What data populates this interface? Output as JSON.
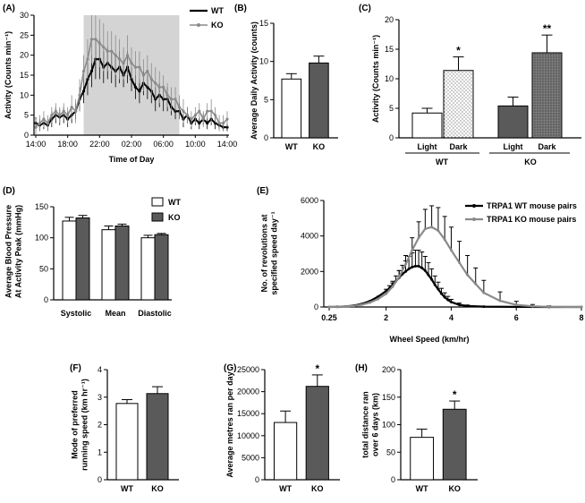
{
  "colors": {
    "wt": "#ffffff",
    "ko": "#5a5a5a",
    "wt_line": "#000000",
    "ko_line": "#8a8a8a",
    "shade": "#d4d4d4",
    "stroke": "#000000"
  },
  "chart_data": [
    {
      "id": "A",
      "panel_label": "(A)",
      "type": "line",
      "xlabel": "Time of Day",
      "ylabel": "Activity (Counts min⁻¹)",
      "ylim": [
        0,
        30
      ],
      "yticks": [
        "0",
        "5",
        "10",
        "15",
        "20",
        "25",
        "30"
      ],
      "xticks": [
        "14:00",
        "18:00",
        "22:00",
        "02:00",
        "06:00",
        "10:00",
        "14:00"
      ],
      "x_range_hours": [
        14,
        38
      ],
      "dark_period_hours": [
        20,
        32
      ],
      "legend": [
        "WT",
        "KO"
      ],
      "series": [
        {
          "name": "WT",
          "x": [
            14,
            14.5,
            15,
            15.5,
            16,
            16.5,
            17,
            17.5,
            18,
            18.5,
            19,
            19.5,
            20,
            20.5,
            21,
            21.5,
            22,
            22.5,
            23,
            23.5,
            24,
            24.5,
            25,
            25.5,
            26,
            26.5,
            27,
            27.5,
            28,
            28.5,
            29,
            29.5,
            30,
            30.5,
            31,
            31.5,
            32,
            32.5,
            33,
            33.5,
            34,
            34.5,
            35,
            35.5,
            36,
            36.5,
            37,
            37.5,
            38
          ],
          "y": [
            3,
            2.5,
            3,
            2.5,
            4,
            5,
            4.5,
            5,
            4,
            5,
            6,
            9,
            11,
            14,
            16,
            19,
            19,
            17,
            18,
            17,
            16,
            17,
            15,
            17,
            14,
            12,
            11,
            13,
            12,
            11,
            9,
            10,
            9,
            9,
            7,
            6,
            6,
            4,
            5,
            3,
            4,
            3,
            4,
            3,
            4,
            3,
            2.5,
            2,
            2
          ],
          "err": [
            1.5,
            1.5,
            1.5,
            1.5,
            2,
            2,
            2,
            2,
            2,
            2,
            2,
            3,
            3,
            4,
            4,
            5,
            5,
            4,
            4,
            4,
            4,
            4,
            3,
            4,
            3,
            3,
            3,
            3,
            3,
            3,
            3,
            3,
            3,
            3,
            2,
            2,
            2,
            2,
            2,
            1.5,
            1.5,
            1.5,
            1.5,
            1.5,
            1.5,
            1.5,
            1,
            1,
            1
          ]
        },
        {
          "name": "KO",
          "x": [
            14,
            14.5,
            15,
            15.5,
            16,
            16.5,
            17,
            17.5,
            18,
            18.5,
            19,
            19.5,
            20,
            20.5,
            21,
            21.5,
            22,
            22.5,
            23,
            23.5,
            24,
            24.5,
            25,
            25.5,
            26,
            26.5,
            27,
            27.5,
            28,
            28.5,
            29,
            29.5,
            30,
            30.5,
            31,
            31.5,
            32,
            32.5,
            33,
            33.5,
            34,
            34.5,
            35,
            35.5,
            36,
            36.5,
            37,
            37.5,
            38
          ],
          "y": [
            2,
            3,
            4,
            3,
            5,
            6,
            5,
            6,
            5,
            7,
            6,
            10,
            16,
            19,
            24,
            24,
            23,
            22,
            21,
            21,
            20,
            19,
            18,
            20,
            18,
            17,
            17,
            15,
            16,
            14,
            13,
            12,
            12,
            10,
            9,
            9,
            7,
            6,
            5,
            4,
            5,
            6,
            4,
            6,
            6,
            5,
            3,
            3,
            4
          ],
          "err": [
            2,
            2,
            2,
            2,
            2,
            2,
            2,
            2,
            2,
            3,
            3,
            4,
            4,
            5,
            6,
            6,
            6,
            6,
            5,
            5,
            5,
            5,
            4,
            5,
            4,
            4,
            4,
            4,
            4,
            4,
            4,
            4,
            3,
            3,
            3,
            3,
            3,
            3,
            2,
            2,
            2,
            2,
            2,
            2,
            3,
            2,
            2,
            2,
            2
          ]
        }
      ]
    },
    {
      "id": "B",
      "panel_label": "(B)",
      "type": "bar",
      "ylabel": "Average Daily Activity (counts)",
      "ylim": [
        0,
        15
      ],
      "yticks": [
        "0",
        "5",
        "10",
        "15"
      ],
      "categories": [
        "WT",
        "KO"
      ],
      "values": [
        7.7,
        9.8
      ],
      "errors": [
        0.7,
        0.9
      ]
    },
    {
      "id": "C",
      "panel_label": "(C)",
      "type": "bar",
      "ylabel": "Activity (Counts min⁻¹)",
      "ylim": [
        0,
        20
      ],
      "yticks": [
        "0",
        "5",
        "10",
        "15",
        "20"
      ],
      "categories": [
        "Light",
        "Dark",
        "Light",
        "Dark"
      ],
      "groups": [
        "WT",
        "KO"
      ],
      "values": [
        4.2,
        11.4,
        5.4,
        14.4
      ],
      "errors": [
        0.8,
        2.3,
        1.5,
        3.0
      ],
      "annotations": [
        "",
        "*",
        "",
        "**"
      ]
    },
    {
      "id": "D",
      "panel_label": "(D)",
      "type": "bar",
      "ylabel_lines": [
        "Average Blood Pressure",
        "At Activity Peak (mmHg)"
      ],
      "ylim": [
        0,
        150
      ],
      "yticks": [
        "0",
        "50",
        "100",
        "150"
      ],
      "categories": [
        "Systolic",
        "Mean",
        "Diastolic"
      ],
      "legend": [
        "WT",
        "KO"
      ],
      "series": [
        {
          "name": "WT",
          "values": [
            127,
            113,
            100
          ],
          "errors": [
            6,
            6,
            4
          ]
        },
        {
          "name": "KO",
          "values": [
            132,
            119,
            105
          ],
          "errors": [
            4,
            3,
            2
          ]
        }
      ]
    },
    {
      "id": "E",
      "panel_label": "(E)",
      "type": "line",
      "xlabel": "Wheel Speed (km/hr)",
      "ylabel_lines": [
        "No. of revolutions at",
        "specified speed day⁻¹"
      ],
      "ylim": [
        0,
        6000
      ],
      "yticks": [
        "0",
        "2000",
        "4000",
        "6000"
      ],
      "xlim": [
        0.25,
        8
      ],
      "xticks": [
        "0.25",
        "2",
        "4",
        "6",
        "8"
      ],
      "legend": [
        "TRPA1 WT mouse pairs",
        "TRPA1 KO mouse pairs"
      ],
      "series": [
        {
          "name": "TRPA1 WT mouse pairs",
          "x": [
            0.25,
            0.5,
            0.75,
            1,
            1.25,
            1.5,
            1.75,
            2,
            2.1,
            2.2,
            2.3,
            2.4,
            2.5,
            2.6,
            2.7,
            2.8,
            2.9,
            3,
            3.1,
            3.2,
            3.3,
            3.4,
            3.5,
            3.6,
            3.7,
            3.8,
            3.9,
            4,
            4.25,
            4.5,
            5,
            6,
            7,
            8
          ],
          "y": [
            0,
            10,
            30,
            80,
            170,
            330,
            580,
            900,
            1050,
            1250,
            1450,
            1650,
            1850,
            2000,
            2150,
            2250,
            2300,
            2300,
            2200,
            2050,
            1800,
            1550,
            1250,
            1000,
            750,
            550,
            400,
            280,
            120,
            60,
            20,
            5,
            0,
            0
          ],
          "err": [
            0,
            0,
            0,
            0,
            0,
            0,
            0,
            100,
            150,
            200,
            300,
            400,
            500,
            600,
            700,
            800,
            900,
            900,
            900,
            800,
            700,
            600,
            500,
            400,
            300,
            250,
            200,
            150,
            100,
            50,
            20,
            0,
            0,
            0
          ]
        },
        {
          "name": "TRPA1 KO mouse pairs",
          "x": [
            0.25,
            0.5,
            0.75,
            1,
            1.25,
            1.5,
            1.75,
            2,
            2.2,
            2.4,
            2.6,
            2.8,
            3,
            3.2,
            3.4,
            3.6,
            3.8,
            4,
            4.25,
            4.5,
            4.75,
            5,
            5.5,
            6,
            6.5,
            7,
            8
          ],
          "y": [
            0,
            10,
            30,
            60,
            130,
            250,
            450,
            750,
            1150,
            1700,
            2400,
            3200,
            3900,
            4400,
            4500,
            4300,
            3800,
            3200,
            2500,
            1800,
            1300,
            800,
            350,
            120,
            40,
            10,
            0
          ],
          "err": [
            0,
            0,
            0,
            0,
            0,
            0,
            0,
            100,
            200,
            350,
            500,
            700,
            900,
            1100,
            1200,
            1300,
            1300,
            1300,
            1200,
            1100,
            900,
            700,
            500,
            200,
            100,
            50,
            0
          ]
        }
      ]
    },
    {
      "id": "F",
      "panel_label": "(F)",
      "type": "bar",
      "ylabel_lines": [
        "Mode of preferred",
        "running speed (km hr⁻¹)"
      ],
      "ylim": [
        0,
        4
      ],
      "yticks": [
        "0",
        "1",
        "2",
        "3",
        "4"
      ],
      "categories": [
        "WT",
        "KO"
      ],
      "values": [
        2.77,
        3.13
      ],
      "errors": [
        0.14,
        0.25
      ]
    },
    {
      "id": "G",
      "panel_label": "(G)",
      "type": "bar",
      "ylabel": "Average metres ran per day",
      "ylim": [
        0,
        25000
      ],
      "yticks": [
        "0",
        "5000",
        "10000",
        "15000",
        "20000",
        "25000"
      ],
      "categories": [
        "WT",
        "KO"
      ],
      "values": [
        13000,
        21200
      ],
      "errors": [
        2600,
        2600
      ],
      "annotations": [
        "",
        "*"
      ]
    },
    {
      "id": "H",
      "panel_label": "(H)",
      "type": "bar",
      "ylabel_lines": [
        "total distance ran",
        "over 6 days (km)"
      ],
      "ylim": [
        0,
        200
      ],
      "yticks": [
        "0",
        "50",
        "100",
        "150",
        "200"
      ],
      "categories": [
        "WT",
        "KO"
      ],
      "values": [
        77,
        128
      ],
      "errors": [
        15,
        15
      ],
      "annotations": [
        "",
        "*"
      ]
    }
  ]
}
